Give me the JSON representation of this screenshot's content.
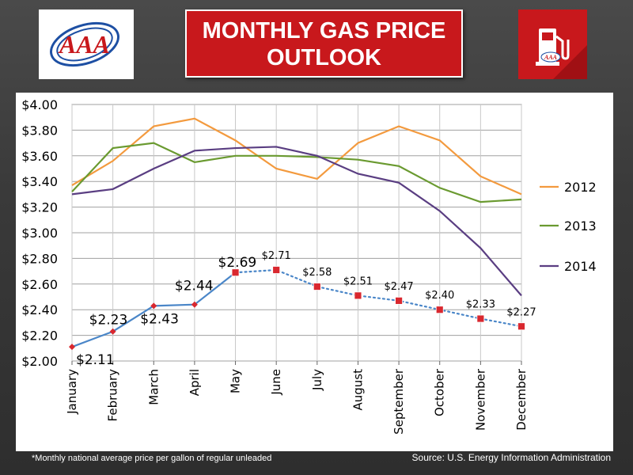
{
  "header": {
    "title_line1": "MONTHLY GAS PRICE",
    "title_line2": "OUTLOOK",
    "logo_text": "AAA",
    "pump_logo_text": "AAA"
  },
  "footer": {
    "footnote": "*Monthly national average price per gallon of regular unleaded",
    "source": "Source: U.S. Energy Information Administration"
  },
  "colors": {
    "title_bg": "#c8181c",
    "2012": "#f39a3e",
    "2013": "#6a9a30",
    "2014": "#5a3e82",
    "actual": "#4a86c8",
    "marker": "#d9282f"
  },
  "chart_data": {
    "type": "line",
    "title": "",
    "xlabel": "",
    "ylabel": "",
    "ylim": [
      2.0,
      4.0
    ],
    "grid": true,
    "legend_position": "right",
    "categories": [
      "January",
      "February",
      "March",
      "April",
      "May",
      "June",
      "July",
      "August",
      "September",
      "October",
      "November",
      "December"
    ],
    "ytick_labels": [
      "$2.00",
      "$2.20",
      "$2.40",
      "$2.60",
      "$2.80",
      "$3.00",
      "$3.20",
      "$3.40",
      "$3.60",
      "$3.80",
      "$4.00"
    ],
    "series": [
      {
        "name": "2012",
        "color": "#f39a3e",
        "values": [
          3.37,
          3.56,
          3.83,
          3.89,
          3.72,
          3.5,
          3.42,
          3.7,
          3.83,
          3.72,
          3.44,
          3.3
        ]
      },
      {
        "name": "2013",
        "color": "#6a9a30",
        "values": [
          3.32,
          3.66,
          3.7,
          3.55,
          3.6,
          3.6,
          3.59,
          3.57,
          3.52,
          3.35,
          3.24,
          3.26
        ]
      },
      {
        "name": "2014",
        "color": "#5a3e82",
        "values": [
          3.3,
          3.34,
          3.5,
          3.64,
          3.66,
          3.67,
          3.6,
          3.46,
          3.39,
          3.17,
          2.88,
          2.51
        ]
      }
    ],
    "actual_series": {
      "values": [
        2.11,
        2.23,
        2.43,
        2.44,
        2.69
      ],
      "labels": [
        "$2.11",
        "$2.23",
        "$2.43",
        "$2.44",
        "$2.69"
      ]
    },
    "forecast_series": {
      "values": [
        2.69,
        2.71,
        2.58,
        2.51,
        2.47,
        2.4,
        2.33,
        2.27
      ],
      "labels": [
        "",
        "$2.71",
        "$2.58",
        "$2.51",
        "$2.47",
        "$2.40",
        "$2.33",
        "$2.27"
      ]
    }
  }
}
